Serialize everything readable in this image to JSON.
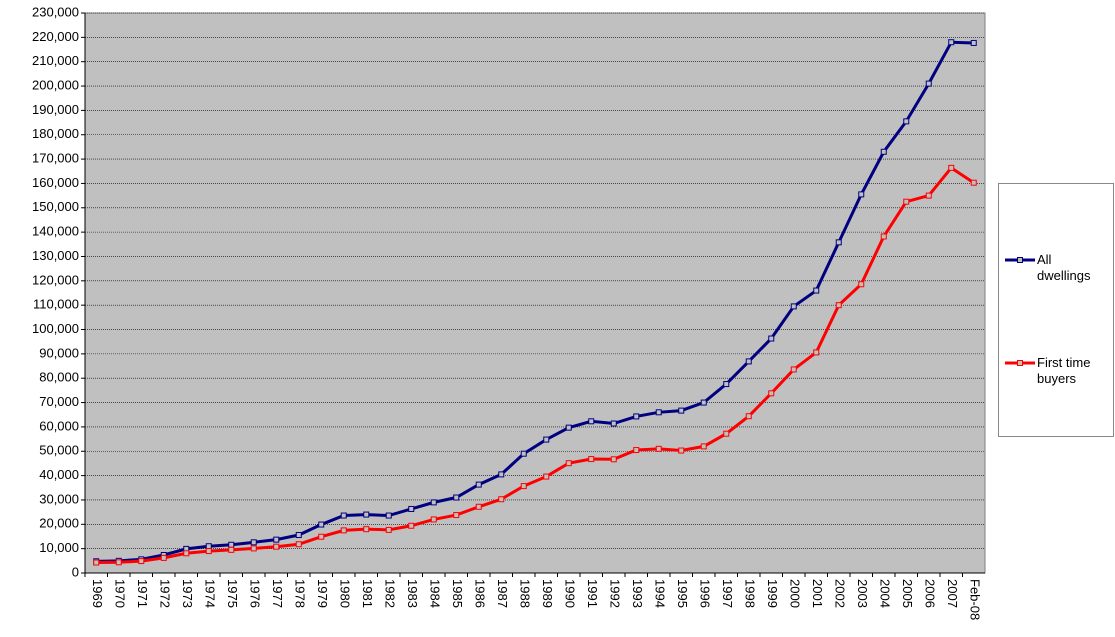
{
  "chart_data": {
    "type": "line",
    "categories": [
      "1969",
      "1970",
      "1971",
      "1972",
      "1973",
      "1974",
      "1975",
      "1976",
      "1977",
      "1978",
      "1979",
      "1980",
      "1981",
      "1982",
      "1983",
      "1984",
      "1985",
      "1986",
      "1987",
      "1988",
      "1989",
      "1990",
      "1991",
      "1992",
      "1993",
      "1994",
      "1995",
      "1996",
      "1997",
      "1998",
      "1999",
      "2000",
      "2001",
      "2002",
      "2003",
      "2004",
      "2005",
      "2006",
      "2007",
      "Feb-08"
    ],
    "series": [
      {
        "name": "All dwellings",
        "color": "#000080",
        "values": [
          4800,
          5000,
          5600,
          7400,
          9900,
          11000,
          11600,
          12600,
          13700,
          15600,
          19900,
          23600,
          24000,
          23600,
          26300,
          29000,
          31000,
          36300,
          40500,
          49000,
          54800,
          59700,
          62300,
          61400,
          64300,
          66000,
          66700,
          70000,
          77600,
          86900,
          96300,
          109500,
          116000,
          135800,
          155500,
          173000,
          185500,
          201000,
          218000,
          217700
        ]
      },
      {
        "name": "First time buyers",
        "color": "#ff0000",
        "values": [
          4300,
          4400,
          4900,
          6200,
          8100,
          9000,
          9500,
          10100,
          10800,
          11800,
          14900,
          17500,
          18000,
          17700,
          19400,
          22000,
          23800,
          27200,
          30300,
          35700,
          39600,
          45100,
          46800,
          46700,
          50500,
          51000,
          50300,
          52000,
          57200,
          64400,
          73800,
          83600,
          90600,
          110000,
          118600,
          138200,
          152500,
          155000,
          166400,
          160300
        ]
      }
    ],
    "ylim": [
      0,
      230000
    ],
    "yticks": [
      0,
      {
        "value": 10000,
        "label": "10,000"
      },
      {
        "value": 20000,
        "label": "20,000"
      },
      {
        "value": 30000,
        "label": "30,000"
      },
      {
        "value": 40000,
        "label": "40,000"
      },
      {
        "value": 50000,
        "label": "50,000"
      },
      {
        "value": 60000,
        "label": "60,000"
      },
      {
        "value": 70000,
        "label": "70,000"
      },
      {
        "value": 80000,
        "label": "80,000"
      },
      {
        "value": 90000,
        "label": "90,000"
      },
      {
        "value": 100000,
        "label": "100,000"
      },
      {
        "value": 110000,
        "label": "110,000"
      },
      {
        "value": 120000,
        "label": "120,000"
      },
      {
        "value": 130000,
        "label": "130,000"
      },
      {
        "value": 140000,
        "label": "140,000"
      },
      {
        "value": 150000,
        "label": "150,000"
      },
      {
        "value": 160000,
        "label": "160,000"
      },
      {
        "value": 170000,
        "label": "170,000"
      },
      {
        "value": 180000,
        "label": "180,000"
      },
      {
        "value": 190000,
        "label": "190,000"
      },
      {
        "value": 200000,
        "label": "200,000"
      },
      {
        "value": 210000,
        "label": "210,000"
      },
      {
        "value": 220000,
        "label": "220,000"
      },
      {
        "value": 230000,
        "label": "230,000"
      }
    ],
    "grid": true,
    "legend": "right",
    "plot_background": "#c0c0c0"
  }
}
